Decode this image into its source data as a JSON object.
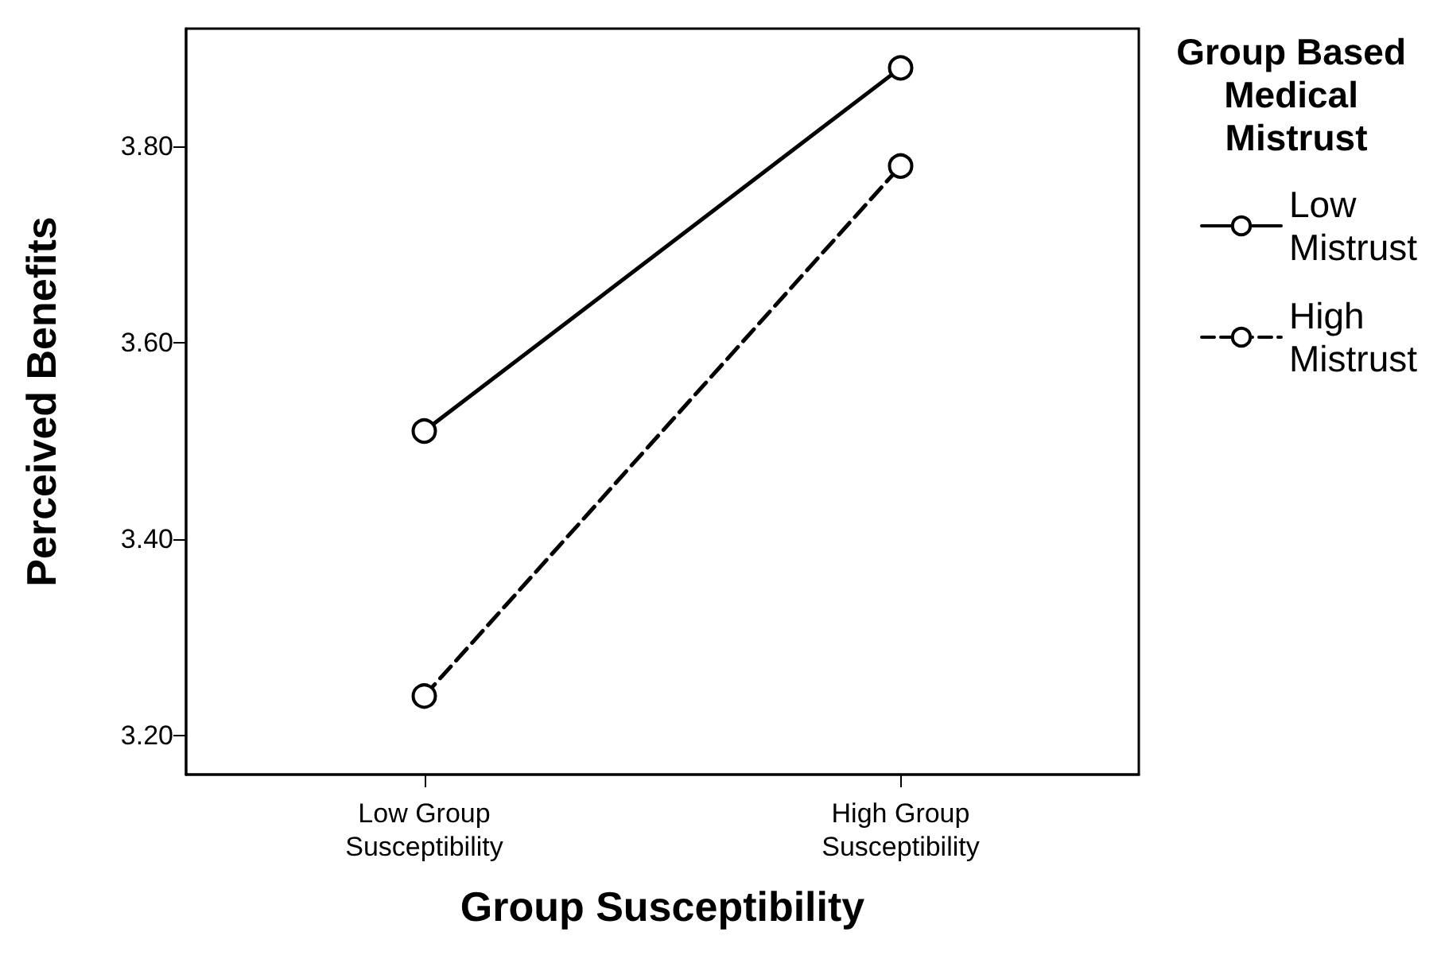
{
  "chart_data": {
    "type": "line",
    "xlabel": "Group Susceptibility",
    "ylabel": "Perceived Benefits",
    "legend_title": "Group Based Medical Mistrust",
    "categories": [
      "Low Group Susceptibility",
      "High Group Susceptibility"
    ],
    "series": [
      {
        "name": "Low Mistrust",
        "color": "#000000",
        "values": [
          3.51,
          3.88
        ],
        "line_style": "solid"
      },
      {
        "name": "High Mistrust",
        "color": "#000000",
        "values": [
          3.24,
          3.78
        ],
        "line_style": "dashed"
      }
    ],
    "ylim": [
      3.16,
      3.92
    ],
    "yticks": [
      {
        "value": 3.2,
        "label": "3.20"
      },
      {
        "value": 3.4,
        "label": "3.40"
      },
      {
        "value": 3.6,
        "label": "3.60"
      },
      {
        "value": 3.8,
        "label": "3.80"
      }
    ],
    "grid": false,
    "legend": "right",
    "marker": "circle"
  }
}
